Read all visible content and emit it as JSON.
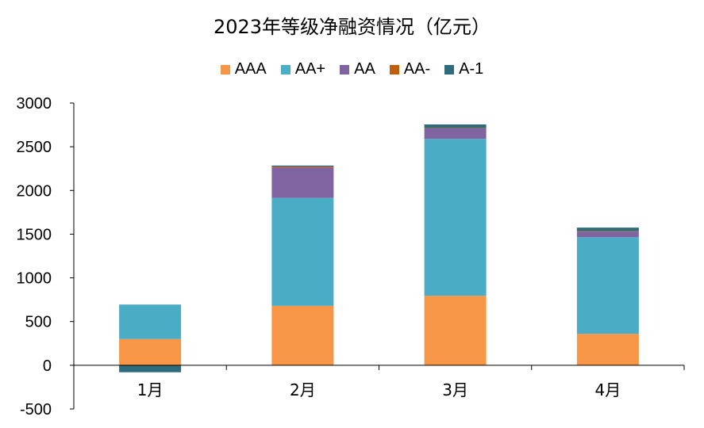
{
  "chart_data": {
    "type": "bar",
    "stacked": true,
    "title": "2023年等级净融资情况（亿元）",
    "categories": [
      "1月",
      "2月",
      "3月",
      "4月"
    ],
    "series": [
      {
        "name": "AAA",
        "color": "#F79646",
        "values": [
          300,
          680,
          795,
          360
        ]
      },
      {
        "name": "AA+",
        "color": "#4BACC6",
        "values": [
          395,
          1235,
          1795,
          1105
        ]
      },
      {
        "name": "AA",
        "color": "#8064A2",
        "values": [
          0,
          350,
          120,
          65
        ]
      },
      {
        "name": "AA-",
        "color": "#C0600E",
        "values": [
          0,
          10,
          5,
          5
        ]
      },
      {
        "name": "A-1",
        "color": "#2E6B7D",
        "values": [
          -80,
          10,
          40,
          40
        ]
      }
    ],
    "ylim": [
      -500,
      3000
    ],
    "yticks": [
      -500,
      0,
      500,
      1000,
      1500,
      2000,
      2500,
      3000
    ],
    "legend_position": "top",
    "grid": false
  }
}
